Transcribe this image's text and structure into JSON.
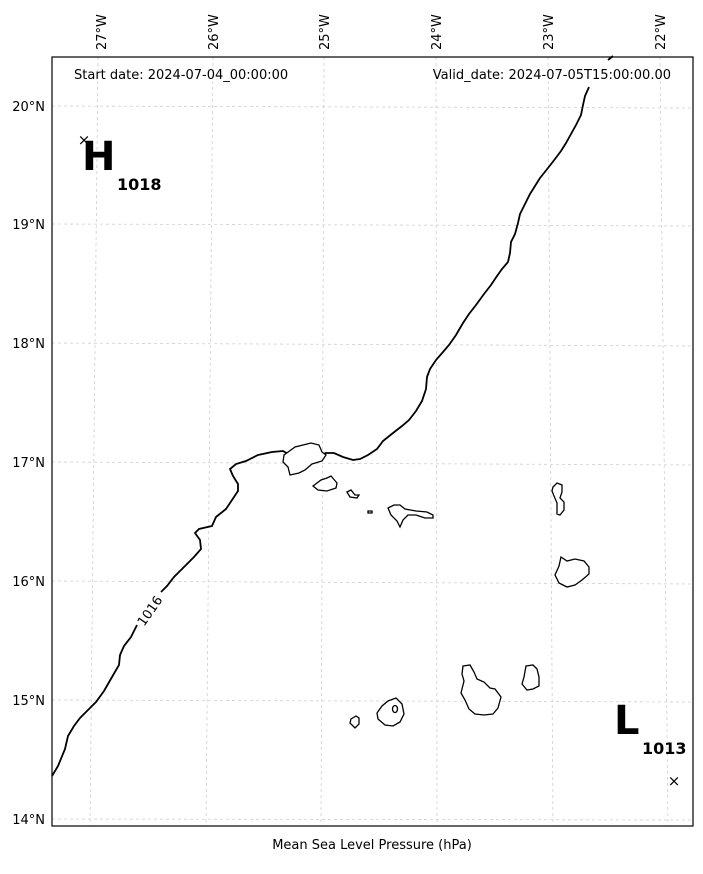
{
  "header": {
    "start_date": "Start date: 2024-07-04_00:00:00",
    "valid_date": "Valid_date: 2024-07-05T15:00:00.00"
  },
  "caption": "Mean Sea Level Pressure (hPa)",
  "axes": {
    "lon_labels": [
      "27°W",
      "26°W",
      "25°W",
      "24°W",
      "23°W",
      "22°W"
    ],
    "lat_labels": [
      "20°N",
      "19°N",
      "18°N",
      "17°N",
      "16°N",
      "15°N",
      "14°N"
    ]
  },
  "pressure_systems": {
    "high": {
      "symbol": "H",
      "value": "1018",
      "marker": "×"
    },
    "low": {
      "symbol": "L",
      "value": "1013",
      "marker": "×"
    }
  },
  "isobar": {
    "label": "1016"
  }
}
